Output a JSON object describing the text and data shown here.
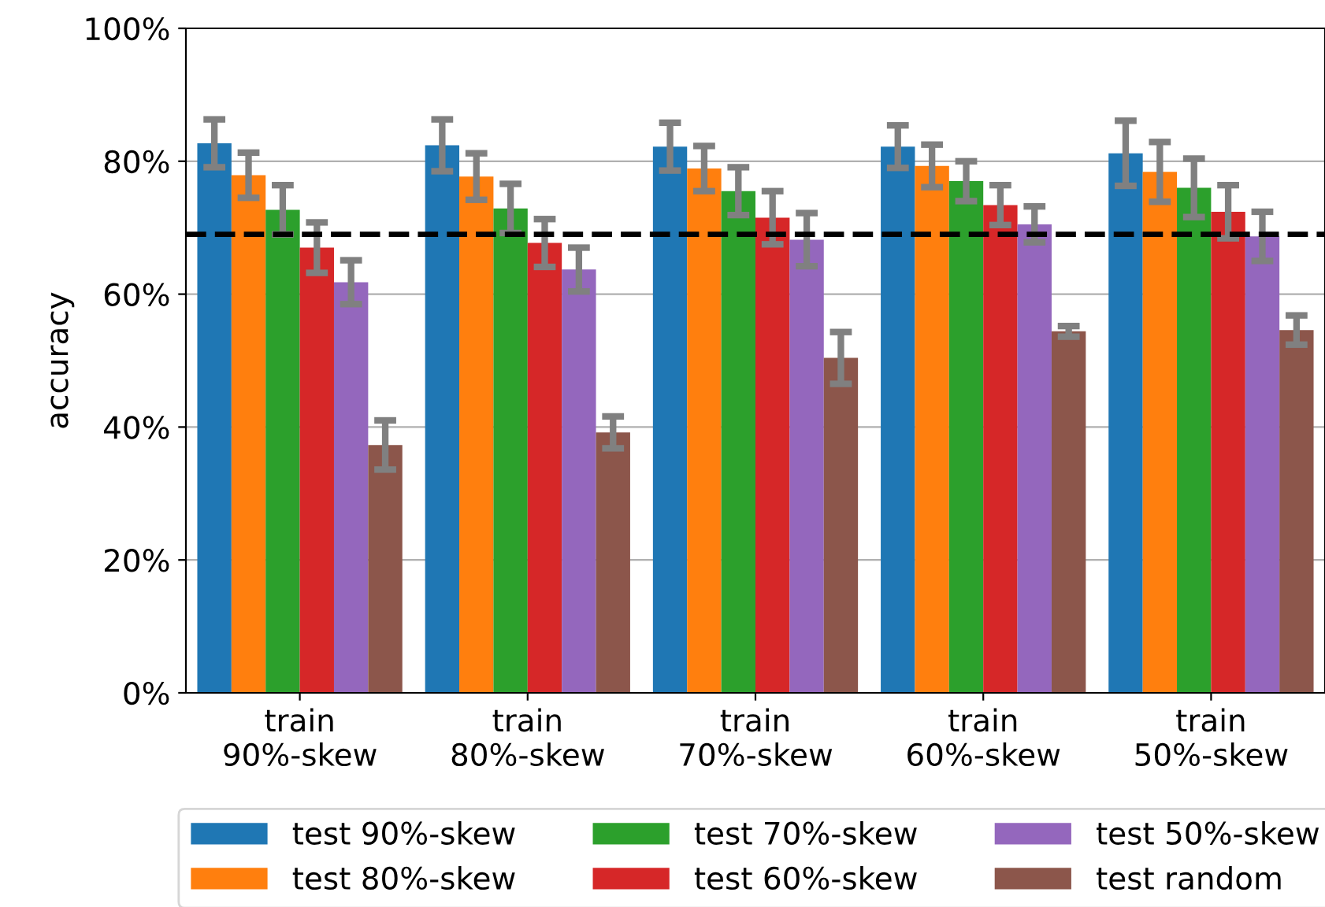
{
  "chart_data": {
    "type": "bar",
    "ylabel": "accuracy",
    "categories": [
      "train\n90%-skew",
      "train\n80%-skew",
      "train\n70%-skew",
      "train\n60%-skew",
      "train\n50%-skew"
    ],
    "series": [
      {
        "name": "test 90%-skew",
        "color": "#1f77b4",
        "values": [
          82.7,
          82.4,
          82.2,
          82.2,
          81.2
        ],
        "errors": [
          3.6,
          3.9,
          3.6,
          3.2,
          4.9
        ]
      },
      {
        "name": "test 80%-skew",
        "color": "#ff7f0e",
        "values": [
          77.9,
          77.7,
          78.9,
          79.3,
          78.4
        ],
        "errors": [
          3.4,
          3.5,
          3.4,
          3.2,
          4.5
        ]
      },
      {
        "name": "test 70%-skew",
        "color": "#2ca02c",
        "values": [
          72.7,
          72.9,
          75.5,
          77.0,
          76.0
        ],
        "errors": [
          3.7,
          3.7,
          3.6,
          3.0,
          4.4
        ]
      },
      {
        "name": "test 60%-skew",
        "color": "#d62728",
        "values": [
          67.0,
          67.7,
          71.5,
          73.4,
          72.4
        ],
        "errors": [
          3.8,
          3.6,
          4.0,
          3.0,
          4.0
        ]
      },
      {
        "name": "test 50%-skew",
        "color": "#9467bd",
        "values": [
          61.8,
          63.7,
          68.2,
          70.5,
          68.7
        ],
        "errors": [
          3.3,
          3.3,
          4.0,
          2.7,
          3.7
        ]
      },
      {
        "name": "test random",
        "color": "#8c564b",
        "values": [
          37.3,
          39.2,
          50.4,
          54.4,
          54.6
        ],
        "errors": [
          3.7,
          2.4,
          3.9,
          0.8,
          2.2
        ]
      }
    ],
    "ylim": [
      0,
      100
    ],
    "yticks": [
      {
        "value": 0,
        "label": "0%"
      },
      {
        "value": 20,
        "label": "20%"
      },
      {
        "value": 40,
        "label": "40%"
      },
      {
        "value": 60,
        "label": "60%"
      },
      {
        "value": 80,
        "label": "80%"
      },
      {
        "value": 100,
        "label": "100%"
      }
    ],
    "ref_lines": [
      {
        "axis": "y",
        "value": 69.0,
        "color": "#000000",
        "line_style": "dashed"
      }
    ],
    "grid": "y",
    "legend": "bottom"
  }
}
